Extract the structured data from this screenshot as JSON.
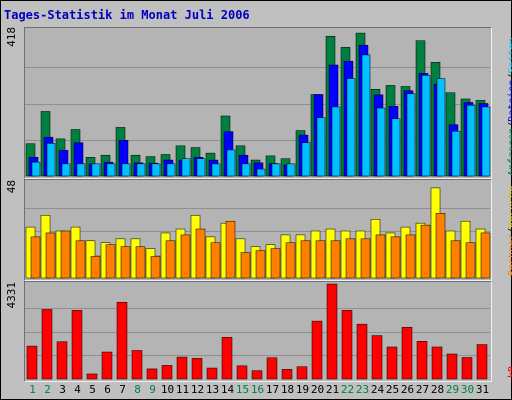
{
  "title": "Tages-Statistik im Monat Juli 2006",
  "colors": {
    "hits": "#008040",
    "files": "#0000ff",
    "pages": "#00c0ff",
    "sites": "#ffff00",
    "visits": "#ff8000",
    "kbytes": "#ff0000",
    "weekend_label": "#008040",
    "weekday_label": "#000000"
  },
  "chart_data": [
    {
      "type": "bar",
      "ylabel_max": "418",
      "ylim": [
        0,
        418
      ],
      "right_labels": [
        {
          "text": "Anfragen",
          "color": "#008040"
        },
        {
          "text": "/",
          "color": "#000000"
        },
        {
          "text": "Dateien",
          "color": "#0000ff"
        },
        {
          "text": "/",
          "color": "#000000"
        },
        {
          "text": "Seiten",
          "color": "#00c0ff"
        }
      ],
      "categories": [
        "1",
        "2",
        "3",
        "4",
        "5",
        "6",
        "7",
        "8",
        "9",
        "10",
        "11",
        "12",
        "13",
        "14",
        "15",
        "16",
        "17",
        "18",
        "19",
        "20",
        "21",
        "22",
        "23",
        "24",
        "25",
        "26",
        "27",
        "28",
        "29",
        "30",
        "31"
      ],
      "weekend": [
        1,
        2,
        8,
        9,
        15,
        16,
        22,
        23,
        29,
        30
      ],
      "series": [
        {
          "name": "Anfragen",
          "values": [
            93,
            186,
            107,
            134,
            54,
            60,
            140,
            60,
            56,
            62,
            87,
            82,
            66,
            173,
            87,
            46,
            58,
            50,
            131,
            235,
            403,
            371,
            412,
            250,
            261,
            258,
            390,
            328,
            240,
            222,
            218
          ]
        },
        {
          "name": "Dateien",
          "values": [
            54,
            112,
            74,
            96,
            35,
            40,
            103,
            38,
            37,
            46,
            46,
            54,
            46,
            128,
            60,
            38,
            36,
            32,
            118,
            235,
            320,
            331,
            377,
            234,
            201,
            246,
            296,
            265,
            148,
            212,
            209
          ]
        },
        {
          "name": "Seiten",
          "values": [
            40,
            94,
            35,
            35,
            35,
            35,
            35,
            35,
            35,
            35,
            50,
            50,
            35,
            75,
            35,
            20,
            35,
            35,
            96,
            168,
            199,
            281,
            349,
            196,
            165,
            237,
            290,
            281,
            129,
            204,
            199
          ]
        }
      ]
    },
    {
      "type": "bar",
      "ylabel_max": "48",
      "ylim": [
        0,
        48
      ],
      "right_labels": [
        {
          "text": "Rechner",
          "color": "#ff8000"
        },
        {
          "text": "/",
          "color": "#000000"
        },
        {
          "text": "Besuche",
          "color": "#e0c000"
        }
      ],
      "categories": [
        "1",
        "2",
        "3",
        "4",
        "5",
        "6",
        "7",
        "8",
        "9",
        "10",
        "11",
        "12",
        "13",
        "14",
        "15",
        "16",
        "17",
        "18",
        "19",
        "20",
        "21",
        "22",
        "23",
        "24",
        "25",
        "26",
        "27",
        "28",
        "29",
        "30",
        "31"
      ],
      "series": [
        {
          "name": "Besuche",
          "values": [
            26,
            32,
            24,
            26,
            19,
            18,
            20,
            20,
            15,
            23,
            25,
            32,
            21,
            28,
            20,
            16,
            17,
            22,
            22,
            24,
            25,
            24,
            24,
            30,
            23,
            26,
            28,
            46,
            24,
            29,
            25
          ]
        },
        {
          "name": "Rechner",
          "values": [
            21,
            23,
            24,
            19,
            11,
            17,
            16,
            16,
            11,
            19,
            22,
            25,
            18,
            29,
            13,
            14,
            15,
            18,
            19,
            19,
            19,
            20,
            20,
            22,
            21,
            22,
            27,
            33,
            19,
            18,
            23
          ]
        }
      ]
    },
    {
      "type": "bar",
      "ylabel_max": "4331",
      "ylim": [
        0,
        4331
      ],
      "right_labels": [
        {
          "text": "kB",
          "color": "#ff0000"
        }
      ],
      "categories": [
        "1",
        "2",
        "3",
        "4",
        "5",
        "6",
        "7",
        "8",
        "9",
        "10",
        "11",
        "12",
        "13",
        "14",
        "15",
        "16",
        "17",
        "18",
        "19",
        "20",
        "21",
        "22",
        "23",
        "24",
        "25",
        "26",
        "27",
        "28",
        "29",
        "30",
        "31"
      ],
      "series": [
        {
          "name": "kB",
          "values": [
            1500,
            3170,
            1700,
            3130,
            230,
            1230,
            3500,
            1300,
            460,
            620,
            1000,
            940,
            500,
            1900,
            600,
            380,
            970,
            440,
            560,
            2640,
            4331,
            3130,
            2500,
            1980,
            1460,
            2360,
            1720,
            1460,
            1140,
            980,
            1570
          ]
        }
      ]
    }
  ]
}
